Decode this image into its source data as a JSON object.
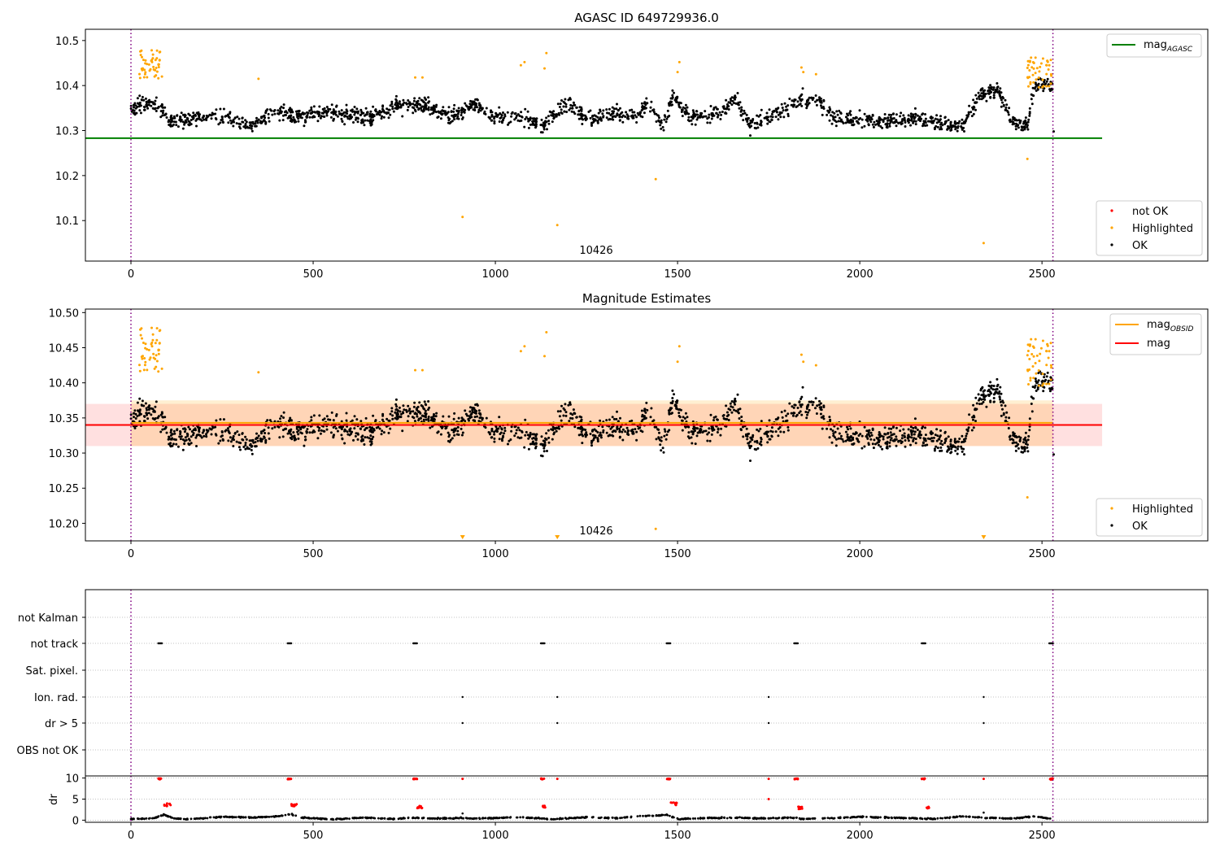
{
  "figure": {
    "obsid_label": "10426"
  },
  "colors": {
    "ok": "#000000",
    "highlighted": "#ffa500",
    "not_ok": "#ff0000",
    "mag_agasc": "#008000",
    "mag_obsid": "#ffa500",
    "mag": "#ff0000",
    "obs_boundary": "#800080",
    "grid": "#b0b0b0"
  },
  "chart_data": [
    {
      "type": "scatter",
      "title": "AGASC ID 649729936.0",
      "xlim": [
        -125,
        2955
      ],
      "ylim": [
        10.01,
        10.525
      ],
      "x_ticks": [
        0,
        500,
        1000,
        1500,
        2000,
        2500
      ],
      "y_ticks": [
        10.1,
        10.2,
        10.3,
        10.4,
        10.5
      ],
      "y_tick_labels": [
        "10.1",
        "10.2",
        "10.3",
        "10.4",
        "10.5"
      ],
      "obs_boundaries": [
        0,
        2530
      ],
      "lines": [
        {
          "name": "mag",
          "subscript": "AGASC",
          "y": 10.283,
          "x_range": [
            -125,
            2665
          ],
          "color": "#008000"
        }
      ],
      "legend_lines": [
        "mag_AGASC"
      ],
      "legend_points": [
        "not OK",
        "Highlighted",
        "OK"
      ],
      "trend": [
        [
          0,
          10.35
        ],
        [
          30,
          10.36
        ],
        [
          80,
          10.35
        ],
        [
          110,
          10.32
        ],
        [
          200,
          10.33
        ],
        [
          270,
          10.33
        ],
        [
          330,
          10.31
        ],
        [
          400,
          10.34
        ],
        [
          450,
          10.33
        ],
        [
          550,
          10.34
        ],
        [
          650,
          10.33
        ],
        [
          720,
          10.35
        ],
        [
          800,
          10.36
        ],
        [
          880,
          10.33
        ],
        [
          940,
          10.36
        ],
        [
          1000,
          10.33
        ],
        [
          1070,
          10.33
        ],
        [
          1130,
          10.31
        ],
        [
          1200,
          10.36
        ],
        [
          1260,
          10.32
        ],
        [
          1320,
          10.34
        ],
        [
          1380,
          10.33
        ],
        [
          1420,
          10.36
        ],
        [
          1460,
          10.31
        ],
        [
          1490,
          10.38
        ],
        [
          1530,
          10.33
        ],
        [
          1620,
          10.34
        ],
        [
          1660,
          10.37
        ],
        [
          1700,
          10.31
        ],
        [
          1780,
          10.34
        ],
        [
          1840,
          10.37
        ],
        [
          1880,
          10.37
        ],
        [
          1930,
          10.33
        ],
        [
          2060,
          10.32
        ],
        [
          2140,
          10.33
        ],
        [
          2200,
          10.32
        ],
        [
          2280,
          10.31
        ],
        [
          2330,
          10.38
        ],
        [
          2380,
          10.39
        ],
        [
          2420,
          10.32
        ],
        [
          2460,
          10.31
        ],
        [
          2480,
          10.4
        ],
        [
          2530,
          10.4
        ]
      ],
      "highlighted_clusters": [
        [
          20,
          80,
          10.415,
          10.485
        ],
        [
          2460,
          2530,
          10.39,
          10.465
        ]
      ],
      "highlighted_points": [
        [
          65,
          10.42
        ],
        [
          85,
          10.42
        ],
        [
          350,
          10.415
        ],
        [
          780,
          10.418
        ],
        [
          800,
          10.418
        ],
        [
          910,
          10.108
        ],
        [
          1070,
          10.445
        ],
        [
          1080,
          10.452
        ],
        [
          1135,
          10.438
        ],
        [
          1140,
          10.472
        ],
        [
          1170,
          10.09
        ],
        [
          1440,
          10.192
        ],
        [
          1500,
          10.43
        ],
        [
          1505,
          10.452
        ],
        [
          1840,
          10.44
        ],
        [
          1845,
          10.43
        ],
        [
          1880,
          10.425
        ],
        [
          2340,
          10.05
        ],
        [
          2460,
          10.237
        ],
        [
          2470,
          10.462
        ],
        [
          2520,
          10.445
        ]
      ]
    },
    {
      "type": "scatter",
      "title": "Magnitude Estimates",
      "xlim": [
        -125,
        2955
      ],
      "ylim": [
        10.175,
        10.505
      ],
      "x_ticks": [
        0,
        500,
        1000,
        1500,
        2000,
        2500
      ],
      "y_ticks": [
        10.2,
        10.25,
        10.3,
        10.35,
        10.4,
        10.45,
        10.5
      ],
      "y_tick_labels": [
        "10.20",
        "10.25",
        "10.30",
        "10.35",
        "10.40",
        "10.45",
        "10.50"
      ],
      "obs_boundaries": [
        0,
        2530
      ],
      "lines": [
        {
          "name": "mag",
          "subscript": "OBSID",
          "y": 10.343,
          "x_range": [
            0,
            2530
          ],
          "color": "#ffa500",
          "band": [
            10.31,
            10.375
          ]
        },
        {
          "name": "mag",
          "subscript": "",
          "y": 10.34,
          "x_range": [
            -125,
            2665
          ],
          "color": "#ff0000",
          "band": [
            10.31,
            10.37
          ]
        }
      ],
      "legend_lines": [
        "mag_OBSID",
        "mag"
      ],
      "legend_points": [
        "Highlighted",
        "OK"
      ],
      "clipped_markers": [
        910,
        1170,
        2340
      ]
    },
    {
      "type": "scatter",
      "title": "",
      "xlim": [
        -125,
        2955
      ],
      "x_ticks": [
        0,
        500,
        1000,
        1500,
        2000,
        2500
      ],
      "flag_categories": [
        "not Kalman",
        "not track",
        "Sat. pixel.",
        "Ion. rad.",
        "dr > 5",
        "OBS not OK"
      ],
      "flags": {
        "not track": [
          [
            75,
            85
          ],
          [
            430,
            440
          ],
          [
            775,
            785
          ],
          [
            1125,
            1135
          ],
          [
            1470,
            1480
          ],
          [
            1820,
            1830
          ],
          [
            2170,
            2180
          ],
          [
            2520,
            2530
          ]
        ],
        "Ion. rad.": [
          910,
          1170,
          1750,
          2340
        ],
        "dr > 5": [
          910,
          1170,
          1750,
          2340
        ]
      },
      "dr": {
        "ylabel": "dr",
        "ylim": [
          -0.5,
          10.5
        ],
        "y_ticks": [
          0,
          5,
          10
        ],
        "trend": [
          [
            0,
            0.3
          ],
          [
            60,
            0.4
          ],
          [
            90,
            1.3
          ],
          [
            120,
            0.4
          ],
          [
            160,
            0.2
          ],
          [
            250,
            0.8
          ],
          [
            330,
            0.6
          ],
          [
            400,
            0.9
          ],
          [
            440,
            1.4
          ],
          [
            470,
            0.6
          ],
          [
            550,
            0.2
          ],
          [
            640,
            0.6
          ],
          [
            720,
            0.3
          ],
          [
            780,
            0.6
          ],
          [
            820,
            0.4
          ],
          [
            900,
            0.5
          ],
          [
            960,
            0.4
          ],
          [
            1050,
            0.7
          ],
          [
            1120,
            0.5
          ],
          [
            1150,
            0.2
          ],
          [
            1250,
            0.7
          ],
          [
            1330,
            0.5
          ],
          [
            1400,
            0.9
          ],
          [
            1470,
            1.3
          ],
          [
            1500,
            0.3
          ],
          [
            1580,
            0.5
          ],
          [
            1660,
            0.6
          ],
          [
            1740,
            0.4
          ],
          [
            1810,
            0.6
          ],
          [
            1840,
            0.3
          ],
          [
            1930,
            0.5
          ],
          [
            2000,
            0.8
          ],
          [
            2080,
            0.6
          ],
          [
            2170,
            0.4
          ],
          [
            2200,
            0.3
          ],
          [
            2280,
            0.9
          ],
          [
            2340,
            0.6
          ],
          [
            2420,
            0.4
          ],
          [
            2480,
            0.9
          ],
          [
            2530,
            0.3
          ]
        ],
        "red_clusters": [
          [
            75,
            85,
            9.7,
            9.9
          ],
          [
            90,
            110,
            3.2,
            4.0
          ],
          [
            430,
            440,
            9.7,
            9.9
          ],
          [
            440,
            455,
            3.2,
            3.8
          ],
          [
            775,
            785,
            9.7,
            9.9
          ],
          [
            785,
            805,
            2.8,
            3.4
          ],
          [
            1125,
            1135,
            9.7,
            9.9
          ],
          [
            1130,
            1140,
            3.0,
            3.4
          ],
          [
            1470,
            1480,
            9.7,
            9.9
          ],
          [
            1480,
            1500,
            3.6,
            4.2
          ],
          [
            1820,
            1830,
            9.7,
            9.9
          ],
          [
            1830,
            1845,
            2.6,
            3.2
          ],
          [
            2170,
            2180,
            9.7,
            9.9
          ],
          [
            2180,
            2195,
            2.8,
            3.2
          ],
          [
            2520,
            2530,
            9.6,
            9.9
          ]
        ],
        "red_points": [
          [
            910,
            9.8
          ],
          [
            1170,
            9.8
          ],
          [
            1750,
            9.8
          ],
          [
            1750,
            5.0
          ],
          [
            2340,
            9.8
          ]
        ],
        "black_points": [
          [
            910,
            1.6
          ],
          [
            2340,
            1.8
          ]
        ]
      }
    }
  ]
}
